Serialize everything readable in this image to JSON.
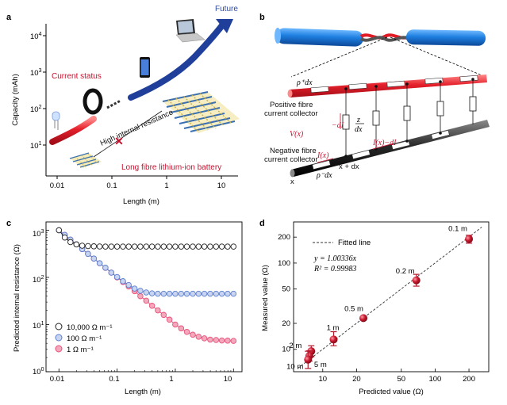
{
  "figure": {
    "panel_a": {
      "letter": "a",
      "ylabel": "Capacity (mAh)",
      "xlabel": "Length (m)",
      "ytick_exponents": [
        "1",
        "2",
        "3",
        "4"
      ],
      "ytick_base": "10",
      "xtick_labels": [
        "0.01",
        "0.1",
        "1",
        "10"
      ],
      "current_status": "Current status",
      "future": "Future",
      "high_resistance": "High internal resistance",
      "long_fibre": "Long fibre lithium-ion battery"
    },
    "panel_b": {
      "letter": "b",
      "rho_plus_dx": "ρ⁺dx",
      "rho_minus_dx": "ρ⁻dx",
      "positive_collector_line1": "Positive fibre",
      "positive_collector_line2": "current collector",
      "negative_collector_line1": "Negative fibre",
      "negative_collector_line2": "current collector",
      "vx": "V(x)",
      "ix": "I(x)",
      "ix_minus_di": "I(x)−dI",
      "minus_di": "−dI",
      "z_num": "z",
      "z_den": "dx",
      "x": "x",
      "x_plus_dx": "x + dx"
    },
    "panel_c": {
      "letter": "c",
      "ylabel": "Predicted internal resistance (Ω)",
      "xlabel": "Length (m)",
      "ytick_base": "10",
      "ytick_exponents": [
        "0",
        "1",
        "2",
        "3"
      ],
      "xtick_labels": [
        "0.01",
        "0.1",
        "1",
        "10"
      ],
      "legend": [
        "10,000 Ω m⁻¹",
        "100 Ω m⁻¹",
        "1 Ω m⁻¹"
      ]
    },
    "panel_d": {
      "letter": "d",
      "ylabel": "Measured value (Ω)",
      "xlabel": "Predicted value (Ω)",
      "fitted_line_label": "Fitted line",
      "equation": "y = 1.00336x",
      "r2_label": "R² = 0.99983",
      "ytick_labels": [
        "10",
        "20",
        "50",
        "100",
        "200"
      ],
      "xtick_labels": [
        "10",
        "20",
        "50",
        "100",
        "200"
      ]
    }
  },
  "colors": {
    "red": "#c8102e",
    "blue": "#1f3f9a",
    "series_black": "#222222",
    "series_blue": "#5b7fd0",
    "series_pink": "#e8507a",
    "marker_red": "#b0182c"
  },
  "chart_data": [
    {
      "id": "c",
      "type": "line",
      "title": "",
      "xlabel": "Length (m)",
      "ylabel": "Predicted internal resistance (Ω)",
      "xscale": "log",
      "yscale": "log",
      "xlim": [
        0.006,
        14
      ],
      "ylim": [
        1,
        1500
      ],
      "legend_position": "bottom-left",
      "x": [
        0.01,
        0.0126,
        0.0158,
        0.02,
        0.0251,
        0.0316,
        0.0398,
        0.0501,
        0.0631,
        0.0794,
        0.1,
        0.126,
        0.158,
        0.2,
        0.251,
        0.316,
        0.398,
        0.501,
        0.631,
        0.794,
        1,
        1.26,
        1.58,
        2,
        2.51,
        3.16,
        3.98,
        5.01,
        6.31,
        7.94,
        10
      ],
      "series": [
        {
          "name": "10,000 Ω m⁻¹",
          "values": [
            1000,
            700,
            560,
            500,
            470,
            460,
            455,
            452,
            451,
            450,
            450,
            450,
            450,
            450,
            450,
            450,
            450,
            450,
            450,
            450,
            450,
            450,
            450,
            450,
            450,
            450,
            450,
            450,
            450,
            450,
            450
          ]
        },
        {
          "name": "100 Ω m⁻¹",
          "values": [
            1000,
            795,
            631,
            501,
            398,
            316,
            251,
            200,
            160,
            126,
            102,
            83,
            69,
            58,
            52,
            48,
            46,
            45,
            45,
            45,
            45,
            45,
            45,
            45,
            45,
            45,
            45,
            45,
            45,
            45,
            45
          ]
        },
        {
          "name": "1 Ω m⁻¹",
          "values": [
            1000,
            795,
            631,
            501,
            398,
            316,
            251,
            200,
            159,
            126,
            100,
            80,
            64,
            51,
            40,
            32,
            25,
            20,
            16,
            12.7,
            10,
            8.3,
            7,
            6.1,
            5.5,
            5.1,
            4.8,
            4.7,
            4.6,
            4.55,
            4.5
          ]
        }
      ]
    },
    {
      "id": "d",
      "type": "scatter",
      "title": "",
      "xlabel": "Predicted value (Ω)",
      "ylabel": "Measured value (Ω)",
      "xscale": "log",
      "yscale": "log",
      "xlim": [
        5.5,
        300
      ],
      "ylim": [
        5.5,
        300
      ],
      "legend_position": "top-left",
      "fit": {
        "slope": 1.00336,
        "r2": 0.99983
      },
      "points": [
        {
          "label": "0.1 m",
          "x": 200,
          "y": 190,
          "yerr": [
            170,
            210
          ]
        },
        {
          "label": "0.2 m",
          "x": 68,
          "y": 63,
          "yerr": [
            54,
            74
          ]
        },
        {
          "label": "0.5 m",
          "x": 23,
          "y": 23,
          "yerr": [
            22,
            24
          ]
        },
        {
          "label": "1 m",
          "x": 12.5,
          "y": 13,
          "yerr": [
            11,
            16
          ]
        },
        {
          "label": "2 m",
          "x": 7.9,
          "y": 9.5,
          "yerr": [
            8.2,
            11
          ]
        },
        {
          "label": "5 m",
          "x": 7.6,
          "y": 8.4,
          "yerr": [
            7.3,
            9.6
          ]
        },
        {
          "label": "10 m",
          "x": 7.4,
          "y": 7.6,
          "yerr": [
            6.0,
            9.5
          ]
        }
      ]
    }
  ]
}
